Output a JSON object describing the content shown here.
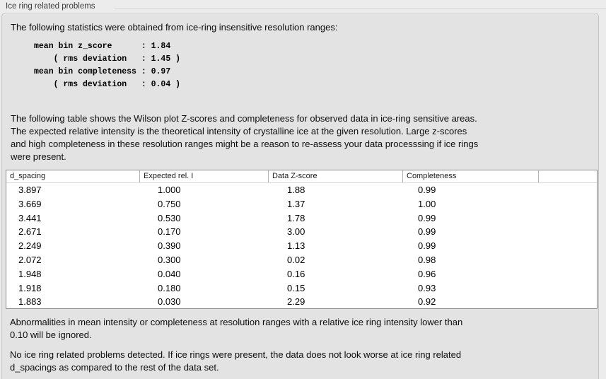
{
  "section": {
    "title": "Ice ring related problems"
  },
  "content": {
    "intro": "The following statistics were obtained from ice-ring insensitive resolution ranges:",
    "stats_lines": [
      "mean bin z_score      : 1.84",
      "    ( rms deviation   : 1.45 )",
      "mean bin completeness : 0.97",
      "    ( rms deviation   : 0.04 )"
    ],
    "table_note_lines": [
      "The following table shows the Wilson plot Z-scores and completeness for observed data in ice-ring sensitive areas.",
      "The expected relative intensity is the theoretical intensity of crystalline ice at the given resolution. Large z-scores",
      "and high completeness in these resolution ranges might be a reason to re-assess your data processsing if ice rings",
      "were present."
    ],
    "table": {
      "columns": [
        "d_spacing",
        "Expected rel. I",
        "Data Z-score",
        "Completeness"
      ],
      "rows": [
        [
          "3.897",
          "1.000",
          "1.88",
          "0.99"
        ],
        [
          "3.669",
          "0.750",
          "1.37",
          "1.00"
        ],
        [
          "3.441",
          "0.530",
          "1.78",
          "0.99"
        ],
        [
          "2.671",
          "0.170",
          "3.00",
          "0.99"
        ],
        [
          "2.249",
          "0.390",
          "1.13",
          "0.99"
        ],
        [
          "2.072",
          "0.300",
          "0.02",
          "0.98"
        ],
        [
          "1.948",
          "0.040",
          "0.16",
          "0.96"
        ],
        [
          "1.918",
          "0.180",
          "0.15",
          "0.93"
        ],
        [
          "1.883",
          "0.030",
          "2.29",
          "0.92"
        ]
      ]
    },
    "ignore_note_lines": [
      "Abnormalities in mean intensity or completeness at resolution ranges with a relative ice ring intensity lower than",
      "0.10 will be ignored."
    ],
    "conclusion_lines": [
      "No ice ring related problems detected. If ice rings were present, the data does not look worse at ice ring related",
      "d_spacings as compared to the rest of the data set."
    ],
    "colors": {
      "background": "#ececec",
      "panel": "#e3e3e3",
      "table_background": "#ffffff"
    }
  }
}
